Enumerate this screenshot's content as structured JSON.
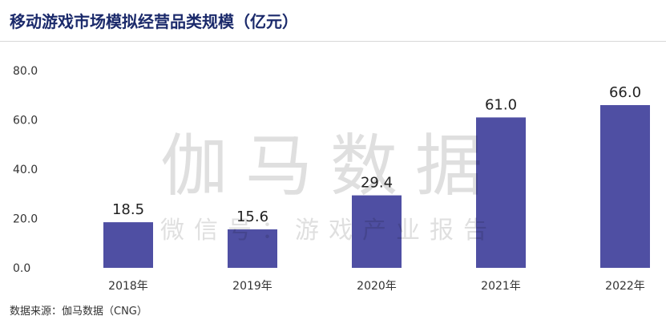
{
  "title": "移动游戏市场模拟经营品类规模（亿元）",
  "source": "数据来源：伽马数据（CNG）",
  "watermark": {
    "main": "伽马数据",
    "sub": "微信号：游戏产业报告"
  },
  "colors": {
    "bar": "#4f4fa3",
    "title": "#1b2a6b",
    "axis_text": "#333333"
  },
  "chart_data": {
    "type": "bar",
    "title": "移动游戏市场模拟经营品类规模（亿元）",
    "categories": [
      "2018年",
      "2019年",
      "2020年",
      "2021年",
      "2022年"
    ],
    "values": [
      18.5,
      15.6,
      29.4,
      61.0,
      66.0
    ],
    "value_labels": [
      "18.5",
      "15.6",
      "29.4",
      "61.0",
      "66.0"
    ],
    "yticks": [
      "0.0",
      "20.0",
      "40.0",
      "60.0",
      "80.0"
    ],
    "ylim": [
      0,
      80
    ],
    "xlabel": "",
    "ylabel": "",
    "grid": false,
    "legend": "none"
  }
}
